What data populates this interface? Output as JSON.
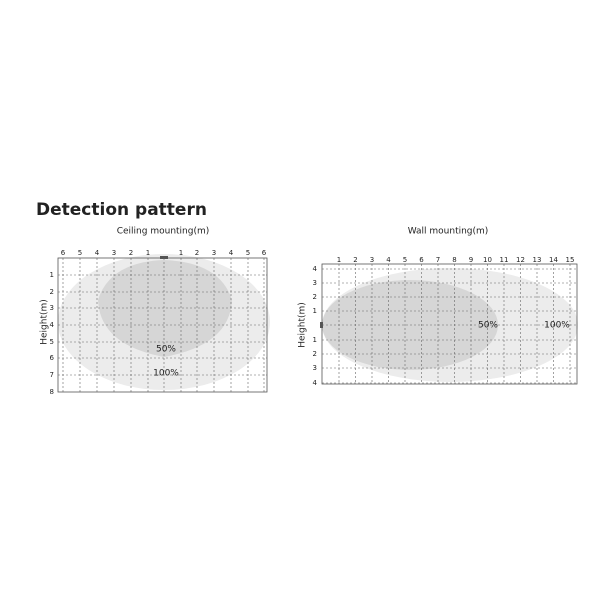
{
  "title": "Detection pattern",
  "panels": [
    {
      "title": "Ceiling mounting(m)",
      "axis_label": "Height(m)",
      "top_ticks": [
        "6",
        "5",
        "4",
        "3",
        "2",
        "1",
        "1",
        "2",
        "3",
        "4",
        "5",
        "6"
      ],
      "left_ticks": [
        "1",
        "2",
        "3",
        "4",
        "5",
        "6",
        "7",
        "8"
      ],
      "zones": [
        "50%",
        "100%"
      ]
    },
    {
      "title": "Wall mounting(m)",
      "axis_label": "Height(m)",
      "top_ticks": [
        "1",
        "2",
        "3",
        "4",
        "5",
        "6",
        "7",
        "8",
        "9",
        "10",
        "11",
        "12",
        "13",
        "14",
        "15"
      ],
      "left_ticks": [
        "4",
        "3",
        "2",
        "1",
        "1",
        "2",
        "3",
        "4"
      ],
      "zones": [
        "50%",
        "100%"
      ]
    }
  ]
}
